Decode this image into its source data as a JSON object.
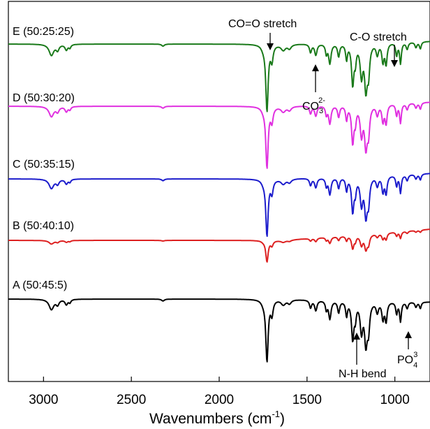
{
  "chart_data": {
    "type": "line",
    "title": "",
    "xlabel_main": "Wavenumbers (cm",
    "xlabel_sup": "-1",
    "xlabel_close": ")",
    "ylabel": "",
    "xlim": [
      3200,
      800
    ],
    "x_ticks": [
      3000,
      2500,
      2000,
      1500,
      1000
    ],
    "x_tick_labels": [
      "3000",
      "2500",
      "2000",
      "1500",
      "1000"
    ],
    "grid": false,
    "series": [
      {
        "name": "E (50:25:25)",
        "color": "#1a7a1a"
      },
      {
        "name": "D (50:30:20)",
        "color": "#e030e0"
      },
      {
        "name": "C (50:35:15)",
        "color": "#1c1ccc"
      },
      {
        "name": "B (50:40:10)",
        "color": "#dd2020"
      },
      {
        "name": "A (50:45:5)",
        "color": "#000000"
      }
    ],
    "annotations": {
      "co_stretch": "CO=O stretch",
      "c_o_stretch": "C-O stretch",
      "co3_base": "CO",
      "co3_sub": "3",
      "co3_sup": "2-",
      "nh_bend": "N-H bend",
      "po4_base": "PO",
      "po4_sub": "4",
      "po4_sup": "3"
    }
  }
}
